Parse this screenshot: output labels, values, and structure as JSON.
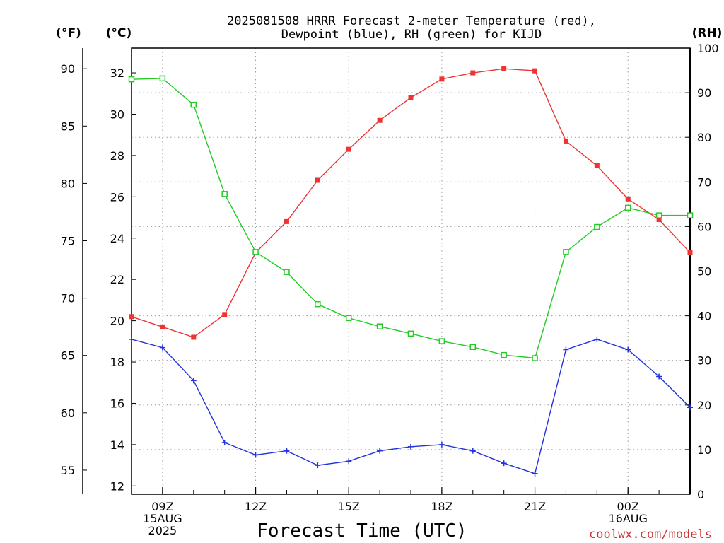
{
  "chart_data": {
    "type": "line",
    "title_line1": "2025081508 HRRR Forecast 2-meter Temperature (red),",
    "title_line2": "Dewpoint (blue), RH (green) for KIJD",
    "xlabel": "Forecast Time (UTC)",
    "credit": "coolwx.com/models",
    "units": {
      "f": "(°F)",
      "c": "(°C)",
      "rh": "(RH)"
    },
    "x_hours": [
      8,
      9,
      10,
      11,
      12,
      13,
      14,
      15,
      16,
      17,
      18,
      19,
      20,
      21,
      22,
      23,
      24,
      25,
      26
    ],
    "x_ticks": [
      {
        "hour": 9,
        "lines": [
          "09Z",
          "15AUG",
          "2025"
        ]
      },
      {
        "hour": 12,
        "lines": [
          "12Z"
        ]
      },
      {
        "hour": 15,
        "lines": [
          "15Z"
        ]
      },
      {
        "hour": 18,
        "lines": [
          "18Z"
        ]
      },
      {
        "hour": 21,
        "lines": [
          "21Z"
        ]
      },
      {
        "hour": 24,
        "lines": [
          "00Z",
          "16AUG"
        ]
      }
    ],
    "xlim": [
      8,
      26
    ],
    "ylim_c": [
      11.6,
      33.2
    ],
    "ylim_rh": [
      0,
      100
    ],
    "ylim_f": [
      52.9,
      91.8
    ],
    "yticks_c": [
      12,
      14,
      16,
      18,
      20,
      22,
      24,
      26,
      28,
      30,
      32
    ],
    "yticks_f": [
      55,
      60,
      65,
      70,
      75,
      80,
      85,
      90
    ],
    "yticks_rh": [
      0,
      10,
      20,
      30,
      40,
      50,
      60,
      70,
      80,
      90,
      100
    ],
    "series": [
      {
        "name": "Temperature",
        "axis": "c",
        "color": "#ee3333",
        "marker": "filled-square",
        "values": [
          20.2,
          19.7,
          19.2,
          20.3,
          23.3,
          24.8,
          26.8,
          28.3,
          29.7,
          30.8,
          31.7,
          32.0,
          32.2,
          32.1,
          28.7,
          27.5,
          25.9,
          24.9,
          23.3
        ]
      },
      {
        "name": "Dewpoint",
        "axis": "c",
        "color": "#2233dd",
        "marker": "plus",
        "values": [
          19.1,
          18.7,
          17.1,
          14.1,
          13.5,
          13.7,
          13.0,
          13.2,
          13.7,
          13.9,
          14.0,
          13.7,
          13.1,
          12.6,
          18.6,
          19.1,
          18.6,
          17.3,
          15.8
        ]
      },
      {
        "name": "RH",
        "axis": "rh",
        "color": "#22cc22",
        "marker": "open-square",
        "values": [
          93.0,
          93.2,
          87.3,
          67.3,
          54.3,
          49.8,
          42.6,
          39.5,
          37.6,
          36.0,
          34.3,
          33.0,
          31.2,
          30.5,
          54.3,
          59.9,
          64.2,
          62.5,
          62.5
        ]
      }
    ],
    "grid": true
  }
}
